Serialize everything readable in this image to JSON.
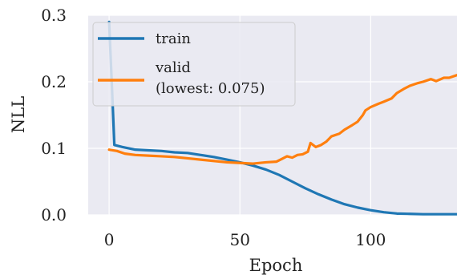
{
  "chart_data": {
    "type": "line",
    "xlabel": "Epoch",
    "ylabel": "NLL",
    "xlim": [
      -8,
      133
    ],
    "ylim": [
      0.0,
      0.3
    ],
    "xticks": [
      0,
      50,
      100
    ],
    "yticks": [
      0.0,
      0.1,
      0.2,
      0.3
    ],
    "xtick_labels": [
      "0",
      "50",
      "100"
    ],
    "ytick_labels": [
      "0.0",
      "0.1",
      "0.2",
      "0.3"
    ],
    "grid": true,
    "legend": {
      "placement": "top-left",
      "entries": [
        {
          "series": 0,
          "lines": [
            "train"
          ]
        },
        {
          "series": 1,
          "lines": [
            "valid",
            "(lowest:  0.075)"
          ]
        }
      ]
    },
    "series": [
      {
        "name": "train",
        "color": "#1f77b4",
        "x": [
          0,
          1,
          2,
          5,
          10,
          15,
          20,
          25,
          30,
          35,
          40,
          45,
          50,
          55,
          60,
          65,
          70,
          75,
          80,
          85,
          90,
          95,
          100,
          105,
          110,
          115,
          120,
          125,
          130,
          133
        ],
        "y": [
          0.29,
          0.2,
          0.105,
          0.102,
          0.098,
          0.097,
          0.096,
          0.094,
          0.093,
          0.09,
          0.087,
          0.083,
          0.079,
          0.074,
          0.068,
          0.06,
          0.05,
          0.04,
          0.031,
          0.023,
          0.016,
          0.011,
          0.007,
          0.004,
          0.002,
          0.0015,
          0.001,
          0.001,
          0.001,
          0.001
        ]
      },
      {
        "name": "valid",
        "color": "#ff7f0e",
        "x": [
          0,
          3,
          6,
          10,
          15,
          20,
          25,
          30,
          35,
          40,
          45,
          50,
          55,
          60,
          64,
          66,
          68,
          70,
          72,
          74,
          76,
          77,
          79,
          81,
          83,
          85,
          88,
          90,
          93,
          95,
          97,
          98,
          100,
          103,
          105,
          108,
          110,
          113,
          115,
          118,
          120,
          123,
          125,
          128,
          130,
          133
        ],
        "y": [
          0.098,
          0.096,
          0.092,
          0.09,
          0.089,
          0.088,
          0.087,
          0.085,
          0.083,
          0.081,
          0.079,
          0.078,
          0.077,
          0.079,
          0.08,
          0.084,
          0.088,
          0.086,
          0.09,
          0.091,
          0.095,
          0.108,
          0.102,
          0.105,
          0.11,
          0.118,
          0.122,
          0.128,
          0.135,
          0.14,
          0.15,
          0.157,
          0.162,
          0.167,
          0.17,
          0.175,
          0.183,
          0.19,
          0.194,
          0.198,
          0.2,
          0.204,
          0.201,
          0.206,
          0.206,
          0.21
        ]
      }
    ]
  }
}
